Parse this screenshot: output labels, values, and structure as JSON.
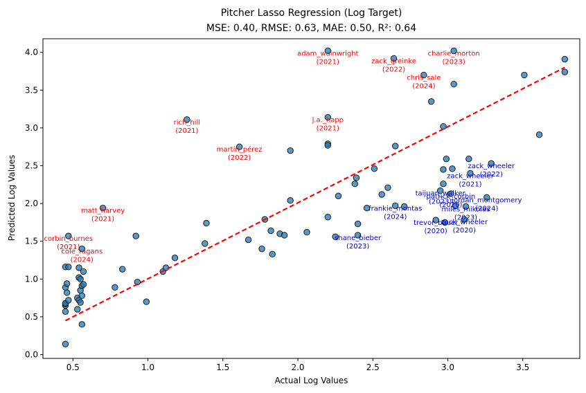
{
  "chart_data": {
    "type": "scatter",
    "title": "Pitcher Lasso Regression (Log Target)",
    "subtitle": "MSE: 0.40, RMSE: 0.63, MAE: 0.50, R²: 0.64",
    "xlabel": "Actual Log Values",
    "ylabel": "Predicted Log Values",
    "xlim": [
      0.3,
      3.88
    ],
    "ylim": [
      -0.05,
      4.18
    ],
    "xticks": [
      0.5,
      1.0,
      1.5,
      2.0,
      2.5,
      3.0,
      3.5
    ],
    "xtick_labels": [
      "0.5",
      "1.0",
      "1.5",
      "2.0",
      "2.5",
      "3.0",
      "3.5"
    ],
    "yticks": [
      0.0,
      0.5,
      1.0,
      1.5,
      2.0,
      2.5,
      3.0,
      3.5,
      4.0
    ],
    "ytick_labels": [
      "0.0",
      "0.5",
      "1.0",
      "1.5",
      "2.0",
      "2.5",
      "3.0",
      "3.5",
      "4.0"
    ],
    "grid": false,
    "colors": {
      "points": "#1f77b4",
      "fit_line": "#ff0000",
      "over_annotation": "#ff0000",
      "under_annotation": "#0000cc"
    },
    "fit_line": {
      "x": [
        0.45,
        3.78
      ],
      "y": [
        0.45,
        3.8
      ]
    },
    "points": [
      [
        0.45,
        0.14
      ],
      [
        0.45,
        0.57
      ],
      [
        0.45,
        0.65
      ],
      [
        0.45,
        0.67
      ],
      [
        0.45,
        0.68
      ],
      [
        0.45,
        0.89
      ],
      [
        0.45,
        1.16
      ],
      [
        0.46,
        0.82
      ],
      [
        0.46,
        0.94
      ],
      [
        0.47,
        0.72
      ],
      [
        0.47,
        1.16
      ],
      [
        0.47,
        1.57
      ],
      [
        0.53,
        0.6
      ],
      [
        0.53,
        0.75
      ],
      [
        0.54,
        0.72
      ],
      [
        0.54,
        1.15
      ],
      [
        0.54,
        1.02
      ],
      [
        0.55,
        0.85
      ],
      [
        0.55,
        0.69
      ],
      [
        0.55,
        1.0
      ],
      [
        0.56,
        0.91
      ],
      [
        0.56,
        0.78
      ],
      [
        0.56,
        0.4
      ],
      [
        0.56,
        1.4
      ],
      [
        0.57,
        1.1
      ],
      [
        0.57,
        0.93
      ],
      [
        0.7,
        1.94
      ],
      [
        0.78,
        0.89
      ],
      [
        0.83,
        1.13
      ],
      [
        0.92,
        1.57
      ],
      [
        0.93,
        0.96
      ],
      [
        0.99,
        0.7
      ],
      [
        1.1,
        1.1
      ],
      [
        1.12,
        1.15
      ],
      [
        1.18,
        1.28
      ],
      [
        1.26,
        3.11
      ],
      [
        1.38,
        1.47
      ],
      [
        1.39,
        1.74
      ],
      [
        1.61,
        2.75
      ],
      [
        1.67,
        1.52
      ],
      [
        1.76,
        1.4
      ],
      [
        1.78,
        1.79
      ],
      [
        1.82,
        1.64
      ],
      [
        1.83,
        1.33
      ],
      [
        1.88,
        1.6
      ],
      [
        1.91,
        1.58
      ],
      [
        1.95,
        2.04
      ],
      [
        1.95,
        2.7
      ],
      [
        2.06,
        1.62
      ],
      [
        2.2,
        4.02
      ],
      [
        2.2,
        3.14
      ],
      [
        2.2,
        2.79
      ],
      [
        2.2,
        2.77
      ],
      [
        2.2,
        1.82
      ],
      [
        2.25,
        1.56
      ],
      [
        2.27,
        2.1
      ],
      [
        2.38,
        2.26
      ],
      [
        2.39,
        2.34
      ],
      [
        2.4,
        1.73
      ],
      [
        2.4,
        1.58
      ],
      [
        2.46,
        1.94
      ],
      [
        2.51,
        2.46
      ],
      [
        2.56,
        2.12
      ],
      [
        2.6,
        2.21
      ],
      [
        2.64,
        3.92
      ],
      [
        2.65,
        2.76
      ],
      [
        2.65,
        1.97
      ],
      [
        2.71,
        1.96
      ],
      [
        2.84,
        3.7
      ],
      [
        2.89,
        3.35
      ],
      [
        2.92,
        1.78
      ],
      [
        2.95,
        2.17
      ],
      [
        2.97,
        3.02
      ],
      [
        2.97,
        2.45
      ],
      [
        2.97,
        2.26
      ],
      [
        2.98,
        1.75
      ],
      [
        2.99,
        2.59
      ],
      [
        3.02,
        2.13
      ],
      [
        3.03,
        2.46
      ],
      [
        3.04,
        4.02
      ],
      [
        3.04,
        3.58
      ],
      [
        3.05,
        1.97
      ],
      [
        3.11,
        1.79
      ],
      [
        3.12,
        1.96
      ],
      [
        3.14,
        2.59
      ],
      [
        3.15,
        2.4
      ],
      [
        3.26,
        2.08
      ],
      [
        3.29,
        2.53
      ],
      [
        3.51,
        3.7
      ],
      [
        3.61,
        2.91
      ],
      [
        3.78,
        3.91
      ],
      [
        3.78,
        3.74
      ]
    ],
    "annotations": [
      {
        "name": "adam_wainwright",
        "year": "(2021)",
        "x": 2.2,
        "y": 4.02,
        "type": "over"
      },
      {
        "name": "zack_greinke",
        "year": "(2022)",
        "x": 2.64,
        "y": 3.92,
        "type": "over"
      },
      {
        "name": "charlie_morton",
        "year": "(2023)",
        "x": 3.04,
        "y": 4.02,
        "type": "over"
      },
      {
        "name": "chris_sale",
        "year": "(2024)",
        "x": 2.84,
        "y": 3.7,
        "type": "over"
      },
      {
        "name": "rich_hill",
        "year": "(2021)",
        "x": 1.26,
        "y": 3.11,
        "type": "over"
      },
      {
        "name": "j.a._happ",
        "year": "(2021)",
        "x": 2.2,
        "y": 3.14,
        "type": "over"
      },
      {
        "name": "martín_pérez",
        "year": "(2022)",
        "x": 1.61,
        "y": 2.75,
        "type": "over"
      },
      {
        "name": "matt_harvey",
        "year": "(2021)",
        "x": 0.7,
        "y": 1.94,
        "type": "over"
      },
      {
        "name": "corbin_burnes",
        "year": "(2021)",
        "x": 0.47,
        "y": 1.57,
        "type": "over"
      },
      {
        "name": "cole_ragans",
        "year": "(2024)",
        "x": 0.56,
        "y": 1.4,
        "type": "over"
      },
      {
        "name": "zack_wheeler",
        "year": "(2022)",
        "x": 3.29,
        "y": 2.53,
        "type": "under"
      },
      {
        "name": "zack_wheeler",
        "year": "(2021)",
        "x": 3.15,
        "y": 2.4,
        "type": "under"
      },
      {
        "name": "taijuan_walker",
        "year": "(2023)",
        "x": 2.95,
        "y": 2.17,
        "type": "under"
      },
      {
        "name": "patrick_corbin",
        "year": "(2020)",
        "x": 3.02,
        "y": 2.13,
        "type": "under"
      },
      {
        "name": "jordan_montgomery",
        "year": "(2024)",
        "x": 3.26,
        "y": 2.08,
        "type": "under"
      },
      {
        "name": "miles_mikolas",
        "year": "(2023)",
        "x": 3.12,
        "y": 1.96,
        "type": "under"
      },
      {
        "name": "frankie_montas",
        "year": "(2024)",
        "x": 2.65,
        "y": 1.97,
        "type": "under"
      },
      {
        "name": "trevor_bauer",
        "year": "(2020)",
        "x": 2.92,
        "y": 1.78,
        "type": "under"
      },
      {
        "name": "zack_wheeler",
        "year": "(2020)",
        "x": 3.11,
        "y": 1.79,
        "type": "under"
      },
      {
        "name": "shane_bieber",
        "year": "(2023)",
        "x": 2.4,
        "y": 1.58,
        "type": "under"
      }
    ]
  }
}
